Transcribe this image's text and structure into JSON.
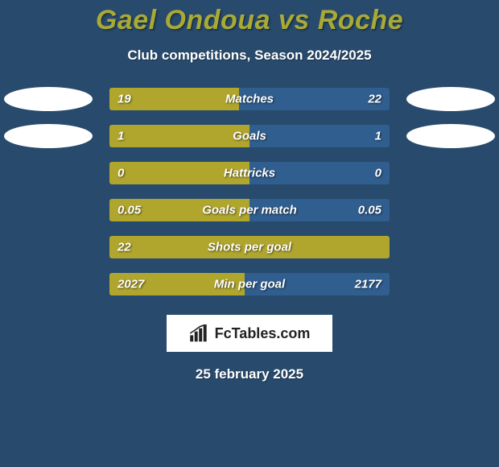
{
  "colors": {
    "page_bg": "#274a6d",
    "title": "#a9a936",
    "text": "#ffffff",
    "left_seg": "#b0a62e",
    "right_seg": "#2f5e8f",
    "ellipse": "#ffffff",
    "date": "#ffffff"
  },
  "title": "Gael Ondoua vs Roche",
  "subtitle": "Club competitions, Season 2024/2025",
  "branding_text": "FcTables.com",
  "date_text": "25 february 2025",
  "rows": [
    {
      "metric": "Matches",
      "left": "19",
      "right": "22",
      "left_pct": 46.3,
      "show_ellipses": true
    },
    {
      "metric": "Goals",
      "left": "1",
      "right": "1",
      "left_pct": 50.0,
      "show_ellipses": true
    },
    {
      "metric": "Hattricks",
      "left": "0",
      "right": "0",
      "left_pct": 50.0,
      "show_ellipses": false
    },
    {
      "metric": "Goals per match",
      "left": "0.05",
      "right": "0.05",
      "left_pct": 50.0,
      "show_ellipses": false
    },
    {
      "metric": "Shots per goal",
      "left": "22",
      "right": "",
      "left_pct": 100.0,
      "show_ellipses": false
    },
    {
      "metric": "Min per goal",
      "left": "2027",
      "right": "2177",
      "left_pct": 48.2,
      "show_ellipses": false
    }
  ]
}
